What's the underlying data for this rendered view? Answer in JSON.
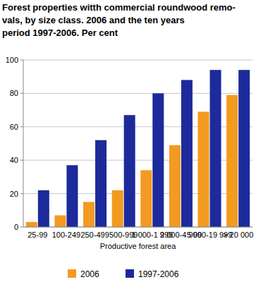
{
  "chart_data": {
    "type": "bar",
    "title": [
      "Forest properties witth commercial roundwood remo-",
      "vals, by size class. 2006 and the ten years",
      "period 1997-2006. Per cent"
    ],
    "x_label": "Productive forest area",
    "categories": [
      "25-99",
      "100-249",
      "250-499",
      "500-999",
      "1 000-1 999",
      "2 000-4 999",
      "5 000-19 999",
      "> 20 000"
    ],
    "series": [
      {
        "name": "2006",
        "color": "#f39a21",
        "values": [
          3,
          7,
          15,
          22,
          34,
          49,
          69,
          79
        ]
      },
      {
        "name": "1997-2006",
        "color": "#1c2a9b",
        "values": [
          22,
          37,
          52,
          67,
          80,
          88,
          94,
          94
        ]
      }
    ],
    "ylim": [
      0,
      100
    ],
    "yticks": [
      0,
      20,
      40,
      60,
      80,
      100
    ],
    "grid": true,
    "legend": "bottom"
  }
}
